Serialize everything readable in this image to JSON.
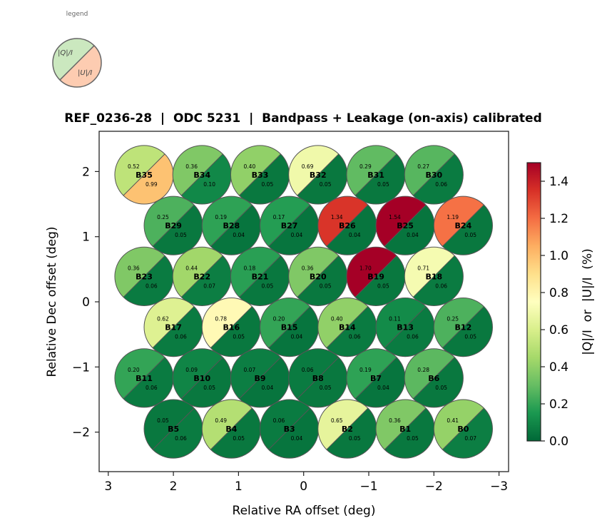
{
  "chart_data": {
    "type": "scatter",
    "title": "REF_0236-28  |  ODC 5231  |  Bandpass + Leakage (on-axis) calibrated",
    "xlabel": "Relative RA offset (deg)",
    "ylabel": "Relative Dec offset (deg)",
    "xlim": [
      3.15,
      -3.15
    ],
    "ylim": [
      -2.6,
      2.6
    ],
    "x_inverted": true,
    "xticks": [
      3,
      2,
      1,
      0,
      -1,
      -2,
      -3
    ],
    "xtick_labels": [
      "3",
      "2",
      "1",
      "0",
      "−1",
      "−2",
      "−3"
    ],
    "yticks": [
      2,
      1,
      0,
      -1,
      -2
    ],
    "ytick_labels": [
      "2",
      "1",
      "0",
      "−1",
      "−2"
    ],
    "grid": false,
    "beam_radius_deg": 0.45,
    "colorbar": {
      "label": "|Q|/I  or  |U|/I  (%)",
      "colormap": "RdYlGn_r",
      "range": [
        0.0,
        1.5
      ],
      "ticks": [
        0.0,
        0.2,
        0.4,
        0.6,
        0.8,
        1.0,
        1.2,
        1.4
      ],
      "tick_labels": [
        "0.0",
        "0.2",
        "0.4",
        "0.6",
        "0.8",
        "1.0",
        "1.2",
        "1.4"
      ]
    },
    "legend": {
      "title": "legend",
      "placement": "top-left",
      "upper_label": "|Q|/I",
      "lower_label": "|U|/I",
      "upper_color": "#cbe8bf",
      "lower_color": "#fdccb1"
    },
    "beams": [
      {
        "name": "B35",
        "ra": 2.45,
        "dec": 1.95,
        "q": 0.52,
        "u": 0.99
      },
      {
        "name": "B34",
        "ra": 1.56,
        "dec": 1.95,
        "q": 0.36,
        "u": 0.1
      },
      {
        "name": "B33",
        "ra": 0.67,
        "dec": 1.95,
        "q": 0.4,
        "u": 0.05
      },
      {
        "name": "B32",
        "ra": -0.22,
        "dec": 1.95,
        "q": 0.69,
        "u": 0.05
      },
      {
        "name": "B31",
        "ra": -1.11,
        "dec": 1.95,
        "q": 0.29,
        "u": 0.05
      },
      {
        "name": "B30",
        "ra": -2.0,
        "dec": 1.95,
        "q": 0.27,
        "u": 0.06
      },
      {
        "name": "B29",
        "ra": 2.0,
        "dec": 1.17,
        "q": 0.25,
        "u": 0.05
      },
      {
        "name": "B28",
        "ra": 1.11,
        "dec": 1.17,
        "q": 0.19,
        "u": 0.04
      },
      {
        "name": "B27",
        "ra": 0.22,
        "dec": 1.17,
        "q": 0.17,
        "u": 0.04
      },
      {
        "name": "B26",
        "ra": -0.67,
        "dec": 1.17,
        "q": 1.34,
        "u": 0.04
      },
      {
        "name": "B25",
        "ra": -1.56,
        "dec": 1.17,
        "q": 1.54,
        "u": 0.04
      },
      {
        "name": "B24",
        "ra": -2.45,
        "dec": 1.17,
        "q": 1.19,
        "u": 0.05
      },
      {
        "name": "B23",
        "ra": 2.45,
        "dec": 0.39,
        "q": 0.36,
        "u": 0.06
      },
      {
        "name": "B22",
        "ra": 1.56,
        "dec": 0.39,
        "q": 0.44,
        "u": 0.07
      },
      {
        "name": "B21",
        "ra": 0.67,
        "dec": 0.39,
        "q": 0.18,
        "u": 0.05
      },
      {
        "name": "B20",
        "ra": -0.22,
        "dec": 0.39,
        "q": 0.36,
        "u": 0.05
      },
      {
        "name": "B19",
        "ra": -1.11,
        "dec": 0.39,
        "q": 1.7,
        "u": 0.05
      },
      {
        "name": "B18",
        "ra": -2.0,
        "dec": 0.39,
        "q": 0.71,
        "u": 0.06
      },
      {
        "name": "B17",
        "ra": 2.0,
        "dec": -0.39,
        "q": 0.62,
        "u": 0.06
      },
      {
        "name": "B16",
        "ra": 1.11,
        "dec": -0.39,
        "q": 0.78,
        "u": 0.05
      },
      {
        "name": "B15",
        "ra": 0.22,
        "dec": -0.39,
        "q": 0.2,
        "u": 0.04
      },
      {
        "name": "B14",
        "ra": -0.67,
        "dec": -0.39,
        "q": 0.4,
        "u": 0.06
      },
      {
        "name": "B13",
        "ra": -1.56,
        "dec": -0.39,
        "q": 0.11,
        "u": 0.06
      },
      {
        "name": "B12",
        "ra": -2.45,
        "dec": -0.39,
        "q": 0.25,
        "u": 0.05
      },
      {
        "name": "B11",
        "ra": 2.45,
        "dec": -1.17,
        "q": 0.2,
        "u": 0.06
      },
      {
        "name": "B10",
        "ra": 1.56,
        "dec": -1.17,
        "q": 0.09,
        "u": 0.05
      },
      {
        "name": "B9",
        "ra": 0.67,
        "dec": -1.17,
        "q": 0.07,
        "u": 0.04
      },
      {
        "name": "B8",
        "ra": -0.22,
        "dec": -1.17,
        "q": 0.06,
        "u": 0.05
      },
      {
        "name": "B7",
        "ra": -1.11,
        "dec": -1.17,
        "q": 0.19,
        "u": 0.04
      },
      {
        "name": "B6",
        "ra": -2.0,
        "dec": -1.17,
        "q": 0.28,
        "u": 0.05
      },
      {
        "name": "B5",
        "ra": 2.0,
        "dec": -1.95,
        "q": 0.05,
        "u": 0.06
      },
      {
        "name": "B4",
        "ra": 1.11,
        "dec": -1.95,
        "q": 0.49,
        "u": 0.05
      },
      {
        "name": "B3",
        "ra": 0.22,
        "dec": -1.95,
        "q": 0.06,
        "u": 0.04
      },
      {
        "name": "B2",
        "ra": -0.67,
        "dec": -1.95,
        "q": 0.65,
        "u": 0.05
      },
      {
        "name": "B1",
        "ra": -1.56,
        "dec": -1.95,
        "q": 0.36,
        "u": 0.05
      },
      {
        "name": "B0",
        "ra": -2.45,
        "dec": -1.95,
        "q": 0.41,
        "u": 0.07
      }
    ]
  }
}
